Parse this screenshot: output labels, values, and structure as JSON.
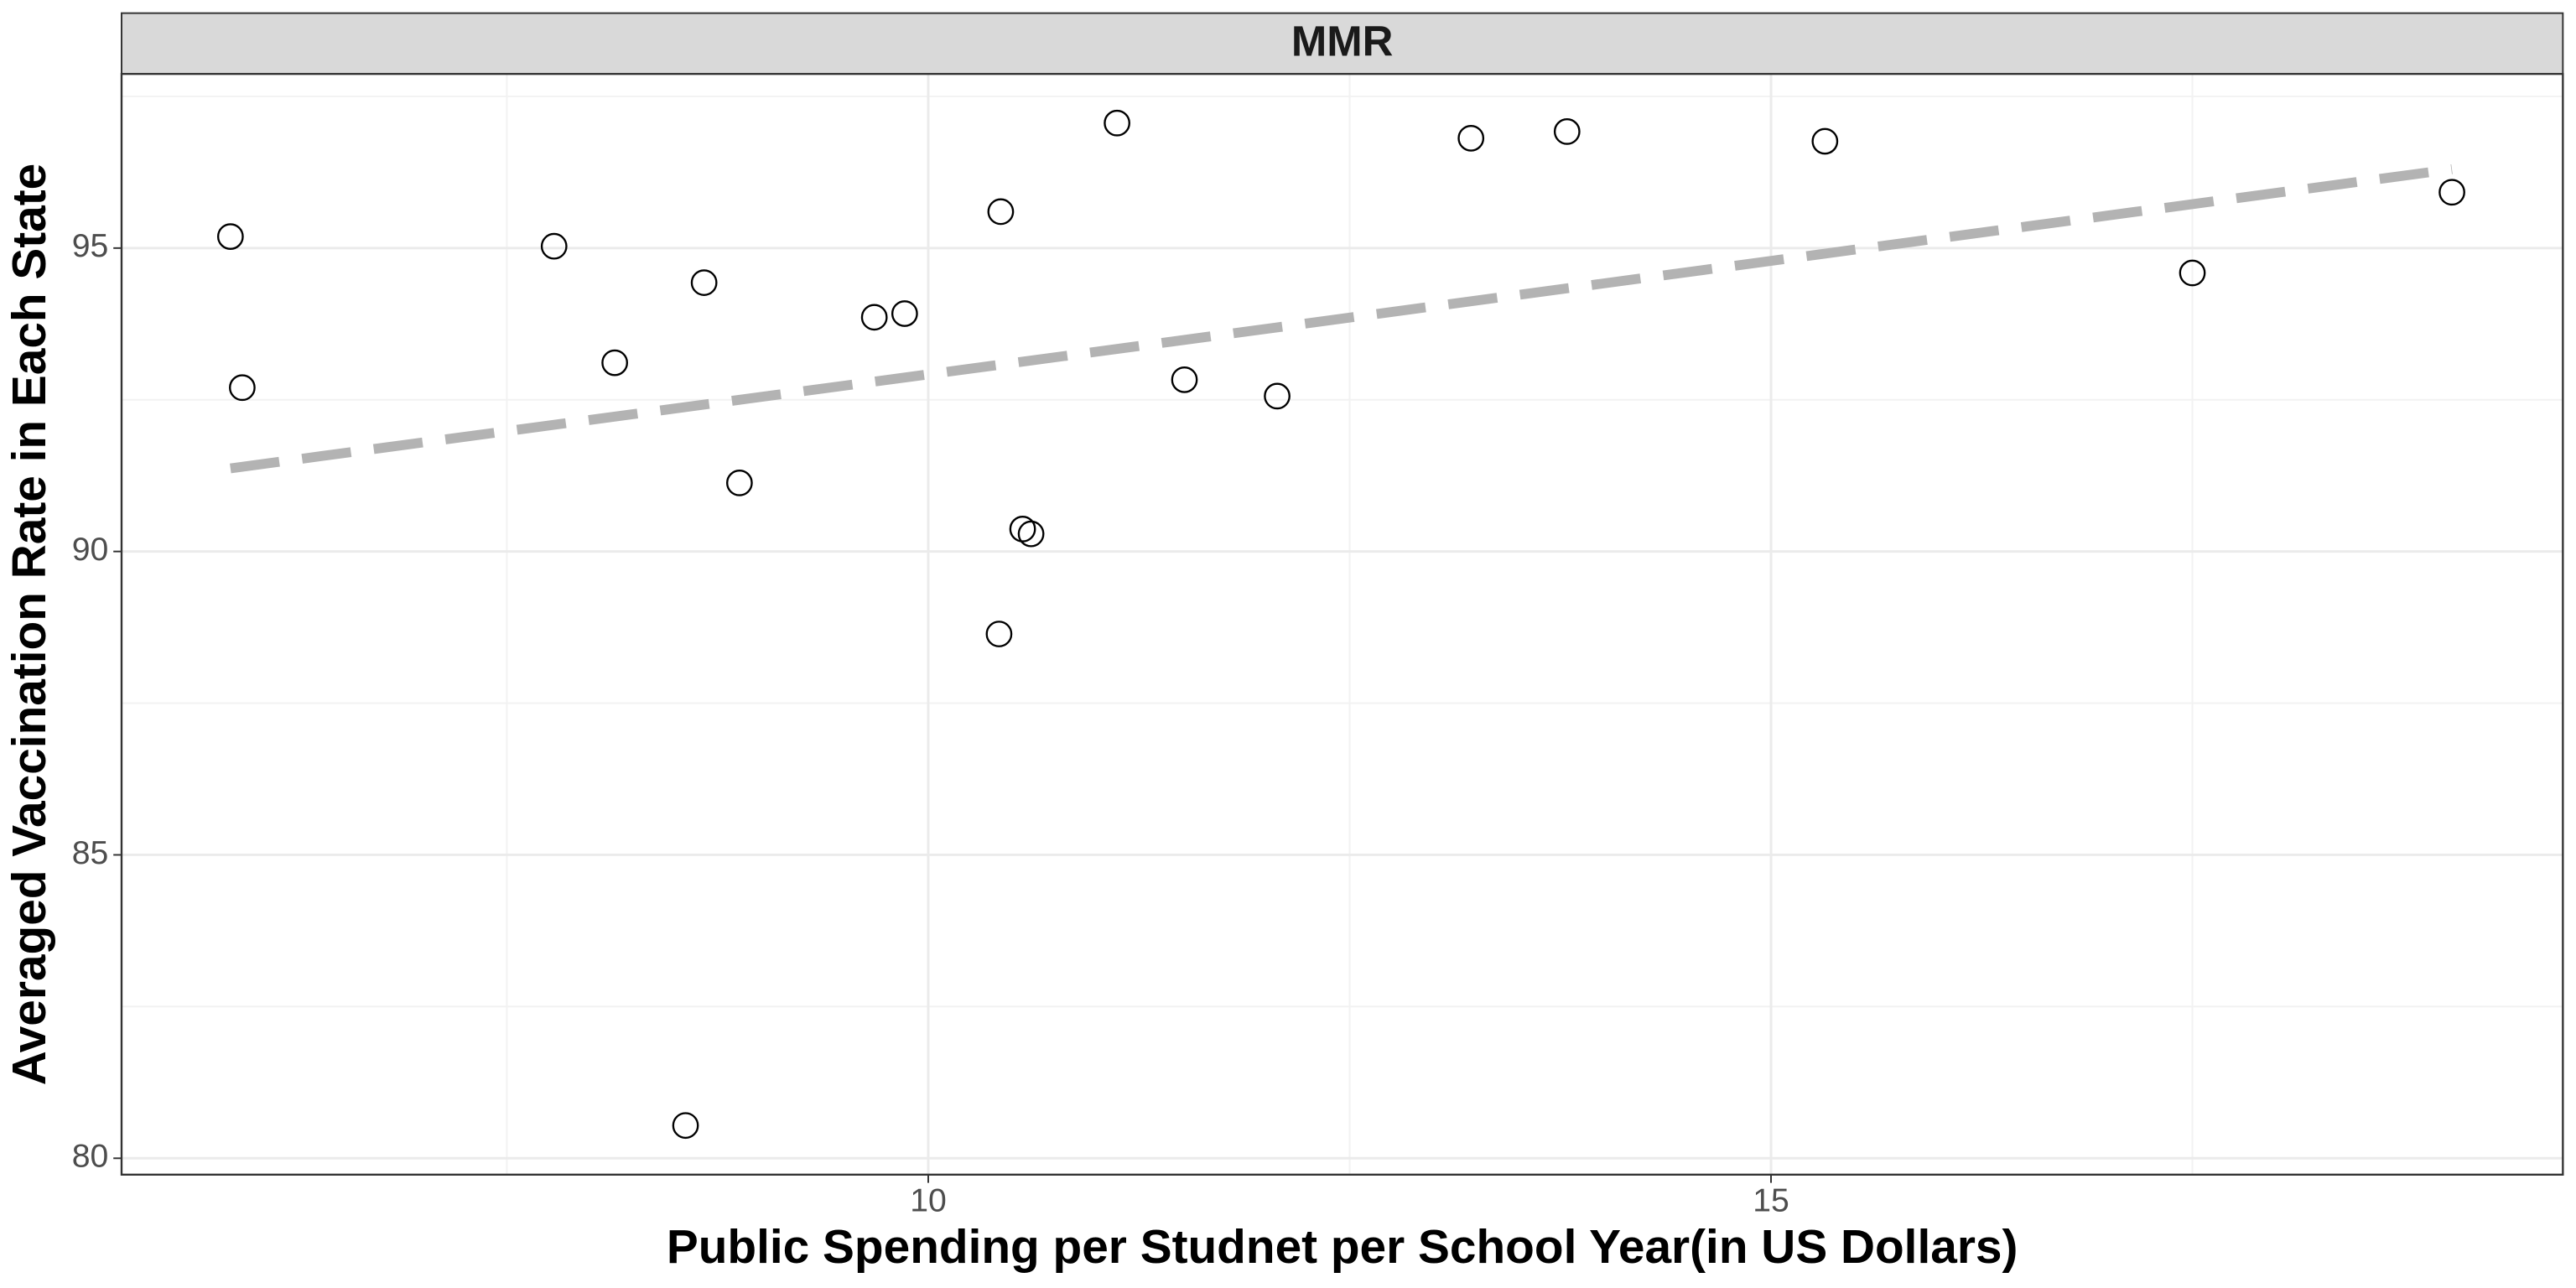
{
  "chart_data": {
    "type": "scatter",
    "facet": "MMR",
    "x_label": "Public Spending per Studnet per School Year(in US Dollars)",
    "y_label": "Averaged Vaccination Rate in Each State",
    "xlim": [
      5.214,
      19.698
    ],
    "ylim": [
      79.73,
      97.87
    ],
    "xticks": [
      10,
      15
    ],
    "yticks": [
      80,
      85,
      90,
      95
    ],
    "x_minor_ticks": [
      7.5,
      12.5,
      17.5
    ],
    "y_minor_ticks": [
      82.5,
      87.5,
      92.5,
      97.5
    ],
    "grid": true,
    "point_color": "#000000",
    "x": [
      5.86,
      5.93,
      7.78,
      8.14,
      8.67,
      8.88,
      8.56,
      9.68,
      9.86,
      10.43,
      10.42,
      10.56,
      10.61,
      11.12,
      11.52,
      12.07,
      13.22,
      13.79,
      15.32,
      17.5,
      19.04
    ],
    "values": [
      95.19,
      92.7,
      95.03,
      93.11,
      94.43,
      91.13,
      80.54,
      93.86,
      93.92,
      95.6,
      88.64,
      90.37,
      90.29,
      97.06,
      92.83,
      92.56,
      96.81,
      96.92,
      96.76,
      94.59,
      95.92
    ],
    "trend": {
      "color": "#b3b3b3",
      "x": [
        5.86,
        19.04
      ],
      "values": [
        91.37,
        96.3
      ]
    }
  }
}
